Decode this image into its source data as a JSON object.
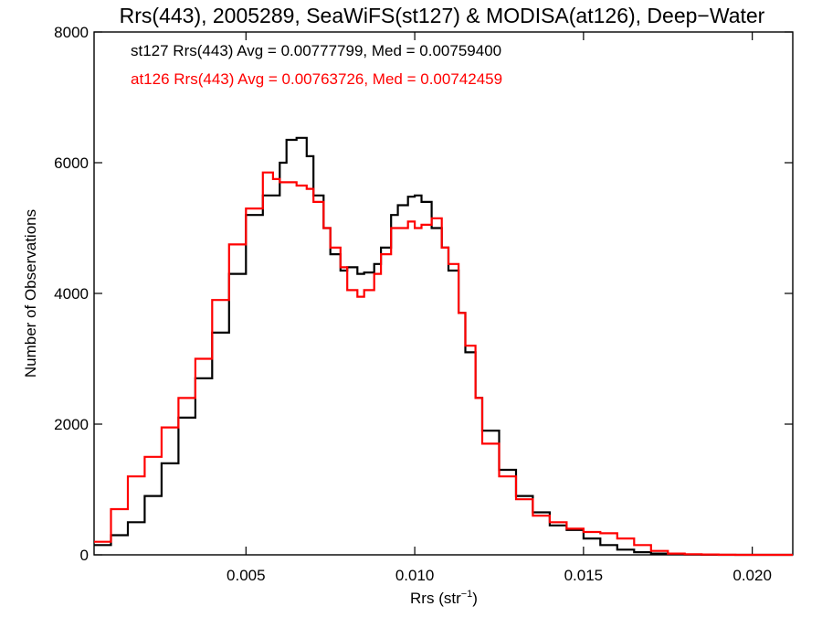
{
  "chart_data": {
    "type": "line",
    "title": "Rrs(443), 2005289, SeaWiFS(st127) & MODISA(at126), Deep−Water",
    "xlabel_main": "Rrs (str",
    "xlabel_sup": "−1",
    "xlabel_end": ")",
    "ylabel": "Number of Observations",
    "xlim": [
      0.0005,
      0.0212
    ],
    "ylim": [
      0,
      8000
    ],
    "xticks": [
      0.005,
      0.01,
      0.015,
      0.02
    ],
    "xtick_labels": [
      "0.005",
      "0.010",
      "0.015",
      "0.020"
    ],
    "yticks": [
      0,
      2000,
      4000,
      6000,
      8000
    ],
    "ytick_labels": [
      "0",
      "2000",
      "4000",
      "6000",
      "8000"
    ],
    "legend": [
      {
        "text": "st127 Rrs(443) Avg = 0.00777799, Med = 0.00759400",
        "color": "#000000"
      },
      {
        "text": "at126 Rrs(443) Avg = 0.00763726, Med = 0.00742459",
        "color": "#ff0000"
      }
    ],
    "series": [
      {
        "color": "#000000",
        "x": [
          0.0005,
          0.001,
          0.0015,
          0.002,
          0.0025,
          0.003,
          0.0035,
          0.004,
          0.0045,
          0.005,
          0.0055,
          0.006,
          0.0062,
          0.0065,
          0.0068,
          0.007,
          0.0073,
          0.0075,
          0.0078,
          0.008,
          0.0083,
          0.0085,
          0.0088,
          0.009,
          0.0093,
          0.0095,
          0.0098,
          0.01,
          0.0102,
          0.0105,
          0.0108,
          0.011,
          0.0113,
          0.0115,
          0.0118,
          0.012,
          0.0125,
          0.013,
          0.0135,
          0.014,
          0.0145,
          0.015,
          0.0155,
          0.016,
          0.0165,
          0.017,
          0.0175,
          0.018,
          0.0185,
          0.019,
          0.0195,
          0.02,
          0.0212
        ],
        "y": [
          150,
          300,
          500,
          900,
          1400,
          2100,
          2700,
          3400,
          4300,
          5200,
          5500,
          6000,
          6350,
          6380,
          6100,
          5500,
          5000,
          4600,
          4350,
          4400,
          4300,
          4320,
          4450,
          4700,
          5200,
          5350,
          5480,
          5500,
          5400,
          5000,
          4700,
          4350,
          3700,
          3100,
          2400,
          1900,
          1300,
          900,
          650,
          450,
          380,
          250,
          150,
          80,
          40,
          20,
          10,
          5,
          2,
          0,
          0,
          0,
          0
        ]
      },
      {
        "color": "#ff0000",
        "x": [
          0.0005,
          0.001,
          0.0015,
          0.002,
          0.0025,
          0.003,
          0.0035,
          0.004,
          0.0045,
          0.005,
          0.0055,
          0.0058,
          0.006,
          0.0065,
          0.0068,
          0.007,
          0.0073,
          0.0075,
          0.0078,
          0.008,
          0.0083,
          0.0085,
          0.0088,
          0.009,
          0.0093,
          0.0095,
          0.0098,
          0.01,
          0.0102,
          0.0105,
          0.0108,
          0.011,
          0.0113,
          0.0115,
          0.0118,
          0.012,
          0.0125,
          0.013,
          0.0135,
          0.014,
          0.0145,
          0.015,
          0.0155,
          0.016,
          0.0165,
          0.017,
          0.0175,
          0.018,
          0.0185,
          0.019,
          0.0195,
          0.02,
          0.0212
        ],
        "y": [
          200,
          700,
          1200,
          1500,
          1950,
          2400,
          3000,
          3900,
          4750,
          5300,
          5850,
          5750,
          5700,
          5650,
          5600,
          5400,
          5000,
          4700,
          4400,
          4050,
          3950,
          4050,
          4300,
          4600,
          5000,
          5000,
          5100,
          5000,
          5050,
          5150,
          4700,
          4450,
          3700,
          3200,
          2400,
          1700,
          1200,
          850,
          600,
          500,
          400,
          350,
          330,
          250,
          150,
          60,
          20,
          10,
          5,
          2,
          0,
          0,
          0
        ]
      }
    ],
    "grid": false
  }
}
